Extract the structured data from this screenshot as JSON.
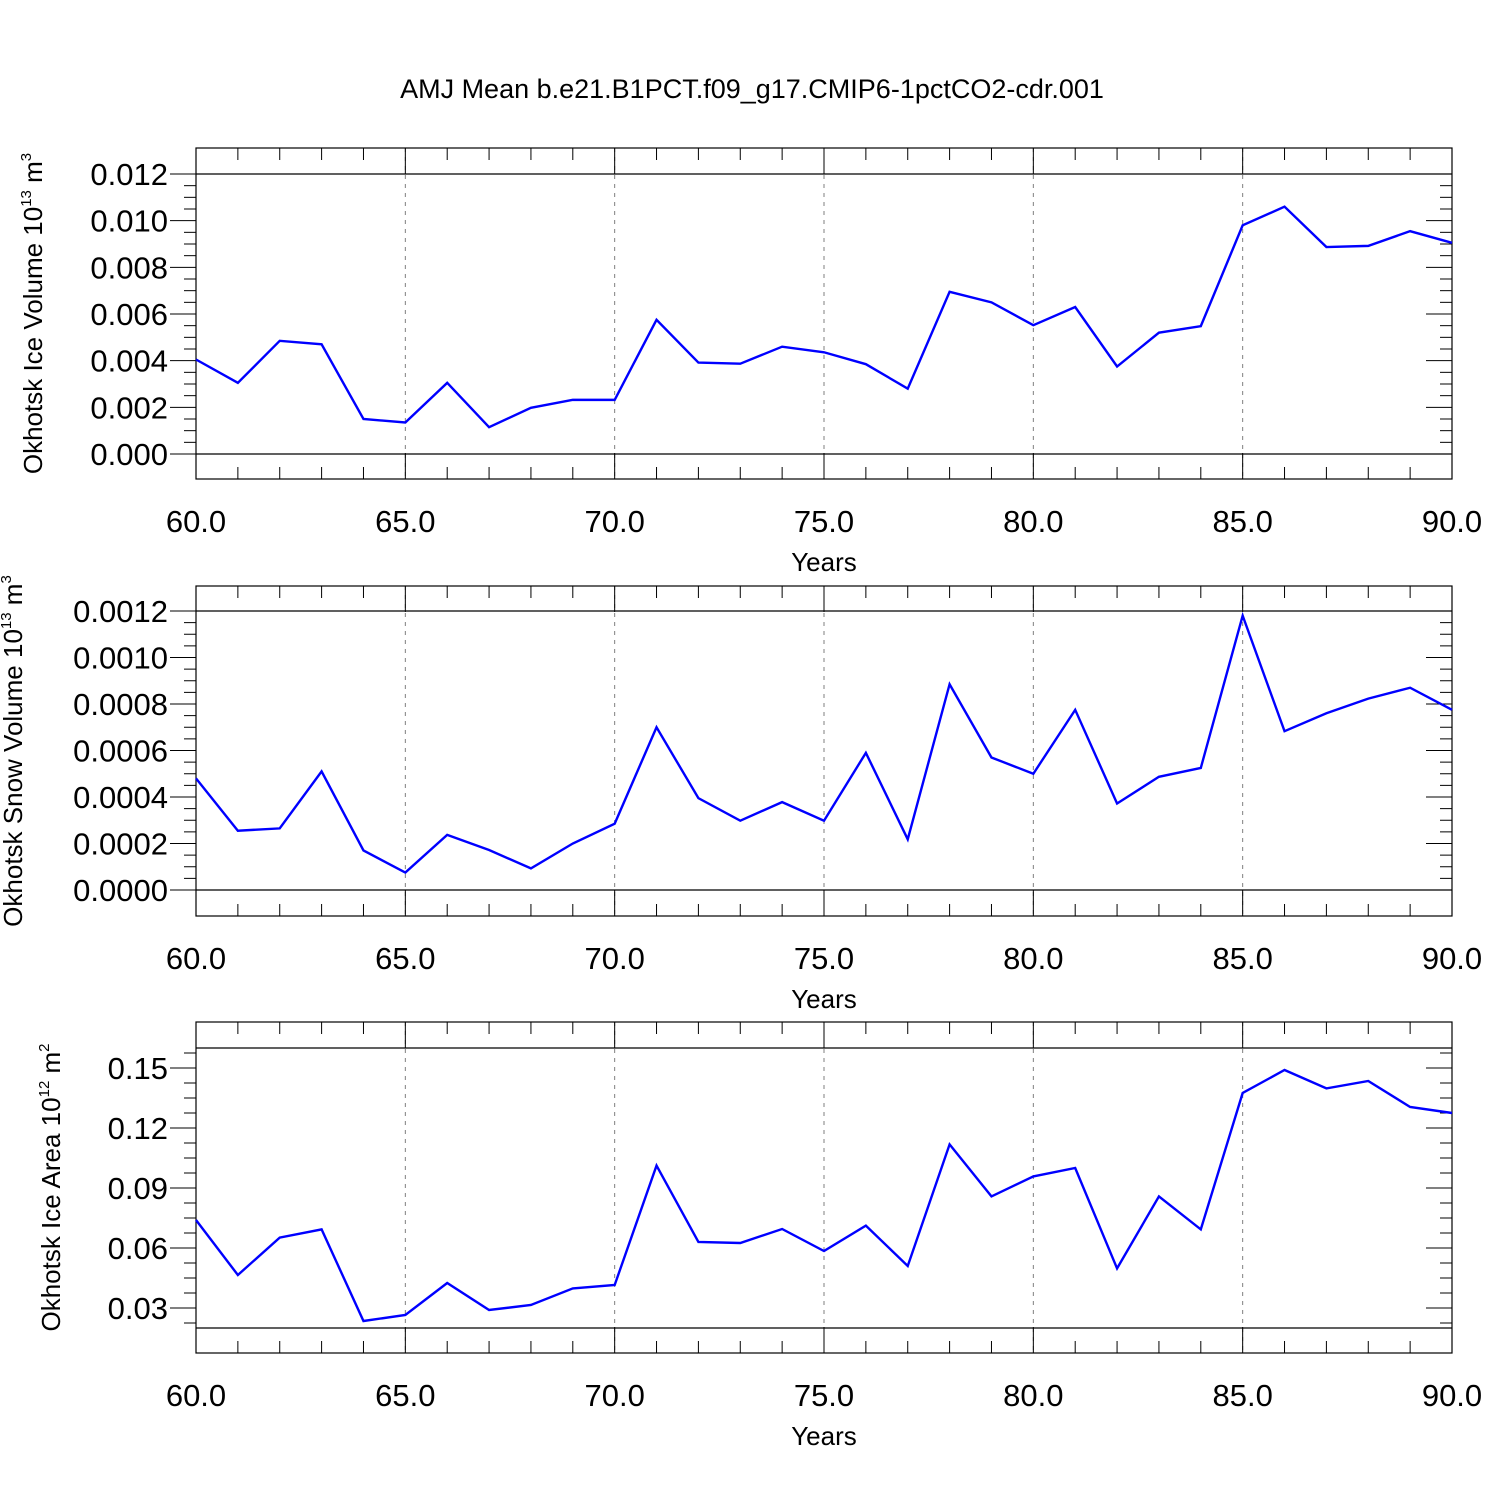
{
  "title": "AMJ Mean b.e21.B1PCT.f09_g17.CMIP6-1pctCO2-cdr.001",
  "colors": {
    "line": "#0000ff",
    "axis": "#000000",
    "grid": "#7f7f7f"
  },
  "chart_data": [
    {
      "type": "line",
      "xlabel": "Years",
      "ylabel": {
        "text": "Okhotsk Ice Volume 10",
        "sup": "13",
        "unit": " m",
        "unit_sup": "3"
      },
      "xlim": [
        60,
        90
      ],
      "ylim": [
        0,
        0.012
      ],
      "x_ticks": [
        60,
        65,
        70,
        75,
        80,
        85,
        90
      ],
      "x_tick_labels": [
        "60.0",
        "65.0",
        "70.0",
        "75.0",
        "80.0",
        "85.0",
        "90.0"
      ],
      "y_ticks": [
        0,
        0.002,
        0.004,
        0.006,
        0.008,
        0.01,
        0.012
      ],
      "y_tick_labels": [
        "0.000",
        "0.002",
        "0.004",
        "0.006",
        "0.008",
        "0.010",
        "0.012"
      ],
      "y_minor_step": 0.0005,
      "grid": "dashed vertical at major x ticks",
      "x": [
        60,
        61,
        62,
        63,
        64,
        65,
        66,
        67,
        68,
        69,
        70,
        71,
        72,
        73,
        74,
        75,
        76,
        77,
        78,
        79,
        80,
        81,
        82,
        83,
        84,
        85,
        86,
        87,
        88,
        89,
        90
      ],
      "series": [
        {
          "values": [
            0.00405,
            0.00305,
            0.00485,
            0.0047,
            0.0015,
            0.00135,
            0.00305,
            0.00115,
            0.00198,
            0.00232,
            0.00232,
            0.00575,
            0.00392,
            0.00387,
            0.0046,
            0.00436,
            0.00385,
            0.0028,
            0.00695,
            0.0065,
            0.00552,
            0.0063,
            0.00375,
            0.0052,
            0.00548,
            0.0098,
            0.0106,
            0.00887,
            0.00892,
            0.00955,
            0.00905
          ]
        }
      ]
    },
    {
      "type": "line",
      "xlabel": "Years",
      "ylabel": {
        "text": "Okhotsk Snow Volume 10",
        "sup": "13",
        "unit": " m",
        "unit_sup": "3"
      },
      "xlim": [
        60,
        90
      ],
      "ylim": [
        0,
        0.0012
      ],
      "x_ticks": [
        60,
        65,
        70,
        75,
        80,
        85,
        90
      ],
      "x_tick_labels": [
        "60.0",
        "65.0",
        "70.0",
        "75.0",
        "80.0",
        "85.0",
        "90.0"
      ],
      "y_ticks": [
        0,
        0.0002,
        0.0004,
        0.0006,
        0.0008,
        0.001,
        0.0012
      ],
      "y_tick_labels": [
        "0.0000",
        "0.0002",
        "0.0004",
        "0.0006",
        "0.0008",
        "0.0010",
        "0.0012"
      ],
      "y_minor_step": 5e-05,
      "grid": "dashed vertical at major x ticks",
      "x": [
        60,
        61,
        62,
        63,
        64,
        65,
        66,
        67,
        68,
        69,
        70,
        71,
        72,
        73,
        74,
        75,
        76,
        77,
        78,
        79,
        80,
        81,
        82,
        83,
        84,
        85,
        86,
        87,
        88,
        89,
        90
      ],
      "series": [
        {
          "values": [
            0.00048,
            0.000255,
            0.000265,
            0.00051,
            0.00017,
            7.5e-05,
            0.000237,
            0.000172,
            9.3e-05,
            0.0002,
            0.000285,
            0.0007,
            0.000395,
            0.000298,
            0.000378,
            0.000298,
            0.00059,
            0.000218,
            0.000885,
            0.00057,
            0.0005,
            0.000775,
            0.000372,
            0.000487,
            0.000525,
            0.00118,
            0.000683,
            0.00076,
            0.000823,
            0.00087,
            0.000775
          ]
        }
      ]
    },
    {
      "type": "line",
      "xlabel": "Years",
      "ylabel": {
        "text": "Okhotsk Ice Area 10",
        "sup": "12",
        "unit": " m",
        "unit_sup": "2"
      },
      "xlim": [
        60,
        90
      ],
      "ylim": [
        0.02,
        0.16
      ],
      "x_ticks": [
        60,
        65,
        70,
        75,
        80,
        85,
        90
      ],
      "x_tick_labels": [
        "60.0",
        "65.0",
        "70.0",
        "75.0",
        "80.0",
        "85.0",
        "90.0"
      ],
      "y_ticks": [
        0.03,
        0.06,
        0.09,
        0.12,
        0.15
      ],
      "y_tick_labels": [
        "0.03",
        "0.06",
        "0.09",
        "0.12",
        "0.15"
      ],
      "y_minor_step": 0.0075,
      "grid": "dashed vertical at major x ticks",
      "x": [
        60,
        61,
        62,
        63,
        64,
        65,
        66,
        67,
        68,
        69,
        70,
        71,
        72,
        73,
        74,
        75,
        76,
        77,
        78,
        79,
        80,
        81,
        82,
        83,
        84,
        85,
        86,
        87,
        88,
        89,
        90
      ],
      "series": [
        {
          "values": [
            0.074,
            0.0465,
            0.0652,
            0.0693,
            0.0235,
            0.0265,
            0.0425,
            0.029,
            0.0315,
            0.0398,
            0.0415,
            0.1012,
            0.063,
            0.0625,
            0.0695,
            0.0585,
            0.0712,
            0.051,
            0.1118,
            0.0858,
            0.0958,
            0.1,
            0.0498,
            0.0858,
            0.0693,
            0.1375,
            0.149,
            0.1398,
            0.1435,
            0.1305,
            0.1275
          ]
        }
      ]
    }
  ]
}
